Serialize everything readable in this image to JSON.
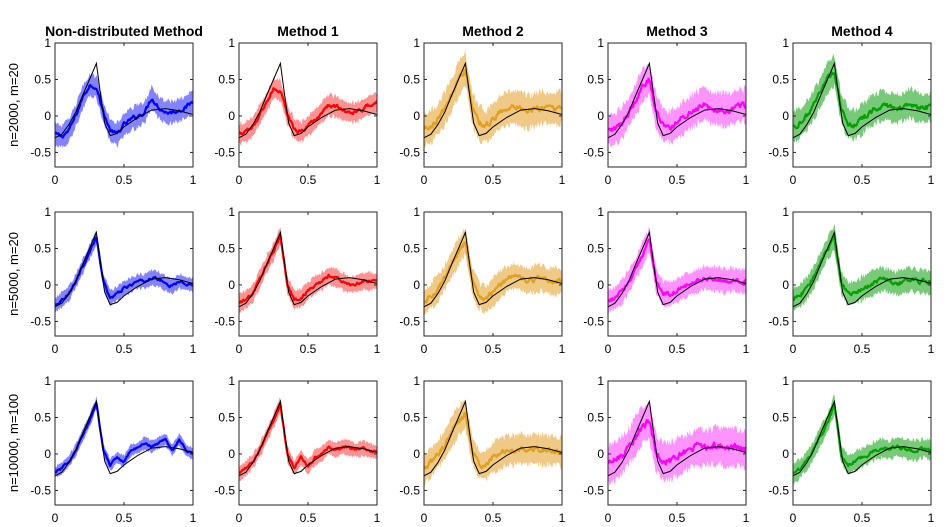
{
  "chart_data": {
    "type": "line",
    "layout": "grid of 3 rows by 5 columns",
    "column_titles": [
      "Non-distributed Method",
      "Method 1",
      "Method 2",
      "Method 3",
      "Method 4"
    ],
    "row_labels": [
      "n=2000, m=20",
      "n=5000, m=20",
      "n=10000, m=100"
    ],
    "colors": [
      "#0000ff",
      "#ff0000",
      "#e0a020",
      "#ff00ff",
      "#00a000"
    ],
    "band_colors": [
      "#6f6fff",
      "#ff8080",
      "#ecc070",
      "#ff80ff",
      "#60c060"
    ],
    "true_function_color": "#000000",
    "xlim": [
      0,
      1
    ],
    "ylim": [
      -0.7,
      1
    ],
    "xticks": [
      0,
      0.5,
      1
    ],
    "xtick_labels": [
      "0",
      "0.5",
      "1"
    ],
    "yticks": [
      -0.5,
      0,
      0.5,
      1
    ],
    "ytick_labels": [
      "-0.5",
      "0",
      "0.5",
      "1"
    ],
    "true_function": {
      "x": [
        0,
        0.05,
        0.1,
        0.15,
        0.2,
        0.25,
        0.3,
        0.33,
        0.36,
        0.4,
        0.45,
        0.5,
        0.6,
        0.7,
        0.8,
        0.9,
        1.0
      ],
      "y": [
        -0.3,
        -0.25,
        -0.12,
        0.05,
        0.28,
        0.5,
        0.72,
        0.3,
        -0.1,
        -0.27,
        -0.24,
        -0.15,
        -0.02,
        0.08,
        0.1,
        0.07,
        0.02
      ]
    },
    "grid": [
      [
        {
          "x": [
            0,
            0.05,
            0.1,
            0.15,
            0.2,
            0.25,
            0.3,
            0.35,
            0.4,
            0.45,
            0.5,
            0.55,
            0.6,
            0.65,
            0.7,
            0.75,
            0.8,
            0.85,
            0.9,
            0.95,
            1.0
          ],
          "y": [
            -0.25,
            -0.28,
            -0.2,
            0.0,
            0.25,
            0.42,
            0.4,
            0.05,
            -0.2,
            -0.25,
            -0.12,
            -0.05,
            0.0,
            0.05,
            0.25,
            0.12,
            0.05,
            0.05,
            0.08,
            0.12,
            0.2
          ],
          "band_halfwidth": 0.15
        },
        {
          "x": [
            0,
            0.05,
            0.1,
            0.15,
            0.2,
            0.25,
            0.3,
            0.35,
            0.4,
            0.45,
            0.5,
            0.55,
            0.6,
            0.65,
            0.7,
            0.75,
            0.8,
            0.85,
            0.9,
            0.95,
            1.0
          ],
          "y": [
            -0.25,
            -0.22,
            -0.15,
            0.02,
            0.18,
            0.38,
            0.35,
            0.02,
            -0.18,
            -0.22,
            -0.14,
            -0.05,
            0.05,
            0.15,
            0.13,
            0.08,
            0.05,
            0.05,
            0.1,
            0.15,
            0.18
          ],
          "band_halfwidth": 0.14
        },
        {
          "x": [
            0,
            0.05,
            0.1,
            0.15,
            0.2,
            0.25,
            0.3,
            0.35,
            0.4,
            0.45,
            0.5,
            0.55,
            0.6,
            0.65,
            0.7,
            0.75,
            0.8,
            0.85,
            0.9,
            0.95,
            1.0
          ],
          "y": [
            -0.2,
            -0.15,
            -0.05,
            0.1,
            0.28,
            0.5,
            0.65,
            0.1,
            -0.1,
            -0.15,
            -0.05,
            0.05,
            0.1,
            0.12,
            0.1,
            0.05,
            0.08,
            0.12,
            0.1,
            0.1,
            0.12
          ],
          "band_halfwidth": 0.22
        },
        {
          "x": [
            0,
            0.05,
            0.1,
            0.15,
            0.2,
            0.25,
            0.3,
            0.35,
            0.4,
            0.45,
            0.5,
            0.55,
            0.6,
            0.65,
            0.7,
            0.75,
            0.8,
            0.85,
            0.9,
            0.95,
            1.0
          ],
          "y": [
            -0.2,
            -0.18,
            -0.1,
            0.05,
            0.22,
            0.42,
            0.5,
            0.05,
            -0.12,
            -0.15,
            -0.1,
            -0.02,
            0.05,
            0.12,
            0.18,
            0.1,
            0.1,
            0.08,
            0.1,
            0.15,
            0.15
          ],
          "band_halfwidth": 0.22
        },
        {
          "x": [
            0,
            0.05,
            0.1,
            0.15,
            0.2,
            0.25,
            0.3,
            0.35,
            0.4,
            0.45,
            0.5,
            0.55,
            0.6,
            0.65,
            0.7,
            0.75,
            0.8,
            0.85,
            0.9,
            0.95,
            1.0
          ],
          "y": [
            -0.15,
            -0.1,
            0.0,
            0.15,
            0.32,
            0.52,
            0.62,
            0.1,
            -0.1,
            -0.12,
            -0.05,
            0.05,
            0.1,
            0.15,
            0.12,
            0.1,
            0.12,
            0.18,
            0.12,
            0.1,
            0.12
          ],
          "band_halfwidth": 0.2
        }
      ],
      [
        {
          "x": [
            0,
            0.05,
            0.1,
            0.15,
            0.2,
            0.25,
            0.3,
            0.35,
            0.4,
            0.45,
            0.5,
            0.55,
            0.6,
            0.65,
            0.7,
            0.75,
            0.8,
            0.85,
            0.9,
            0.95,
            1.0
          ],
          "y": [
            -0.28,
            -0.2,
            -0.12,
            0.05,
            0.25,
            0.45,
            0.65,
            0.05,
            -0.18,
            -0.12,
            -0.05,
            0.0,
            0.05,
            0.05,
            0.1,
            0.08,
            0.02,
            -0.02,
            0.05,
            0.02,
            0.0
          ],
          "band_halfwidth": 0.1
        },
        {
          "x": [
            0,
            0.05,
            0.1,
            0.15,
            0.2,
            0.25,
            0.3,
            0.35,
            0.4,
            0.45,
            0.5,
            0.55,
            0.6,
            0.65,
            0.7,
            0.75,
            0.8,
            0.85,
            0.9,
            0.95,
            1.0
          ],
          "y": [
            -0.25,
            -0.2,
            -0.12,
            0.08,
            0.28,
            0.45,
            0.68,
            0.0,
            -0.2,
            -0.18,
            -0.08,
            0.0,
            0.05,
            0.12,
            0.1,
            0.05,
            0.0,
            0.02,
            0.05,
            0.05,
            0.05
          ],
          "band_halfwidth": 0.12
        },
        {
          "x": [
            0,
            0.05,
            0.1,
            0.15,
            0.2,
            0.25,
            0.3,
            0.35,
            0.4,
            0.45,
            0.5,
            0.55,
            0.6,
            0.65,
            0.7,
            0.75,
            0.8,
            0.85,
            0.9,
            0.95,
            1.0
          ],
          "y": [
            -0.25,
            -0.15,
            -0.05,
            0.1,
            0.28,
            0.45,
            0.6,
            0.05,
            -0.15,
            -0.2,
            -0.1,
            0.0,
            0.08,
            0.12,
            0.1,
            0.05,
            0.08,
            0.1,
            0.05,
            0.05,
            0.05
          ],
          "band_halfwidth": 0.18
        },
        {
          "x": [
            0,
            0.05,
            0.1,
            0.15,
            0.2,
            0.25,
            0.3,
            0.35,
            0.4,
            0.45,
            0.5,
            0.55,
            0.6,
            0.65,
            0.7,
            0.75,
            0.8,
            0.85,
            0.9,
            0.95,
            1.0
          ],
          "y": [
            -0.22,
            -0.18,
            -0.1,
            0.05,
            0.22,
            0.42,
            0.62,
            0.05,
            -0.12,
            -0.12,
            -0.08,
            -0.02,
            0.02,
            0.05,
            0.1,
            0.08,
            0.08,
            0.05,
            0.08,
            0.05,
            0.05
          ],
          "band_halfwidth": 0.16
        },
        {
          "x": [
            0,
            0.05,
            0.1,
            0.15,
            0.2,
            0.25,
            0.3,
            0.35,
            0.4,
            0.45,
            0.5,
            0.55,
            0.6,
            0.65,
            0.7,
            0.75,
            0.8,
            0.85,
            0.9,
            0.95,
            1.0
          ],
          "y": [
            -0.2,
            -0.15,
            -0.05,
            0.1,
            0.3,
            0.5,
            0.65,
            0.02,
            -0.12,
            -0.1,
            -0.05,
            0.0,
            0.05,
            0.08,
            0.05,
            0.02,
            0.05,
            0.08,
            0.05,
            0.05,
            0.02
          ],
          "band_halfwidth": 0.16
        }
      ],
      [
        {
          "x": [
            0,
            0.05,
            0.1,
            0.15,
            0.2,
            0.25,
            0.3,
            0.35,
            0.4,
            0.45,
            0.5,
            0.55,
            0.6,
            0.65,
            0.7,
            0.75,
            0.8,
            0.85,
            0.9,
            0.95,
            1.0
          ],
          "y": [
            -0.25,
            -0.2,
            -0.1,
            0.05,
            0.25,
            0.45,
            0.7,
            0.05,
            -0.15,
            -0.05,
            -0.1,
            0.05,
            0.08,
            0.15,
            0.1,
            0.15,
            0.2,
            0.05,
            0.2,
            0.05,
            0.0
          ],
          "band_halfwidth": 0.08
        },
        {
          "x": [
            0,
            0.05,
            0.1,
            0.15,
            0.2,
            0.25,
            0.3,
            0.35,
            0.4,
            0.45,
            0.5,
            0.55,
            0.6,
            0.65,
            0.7,
            0.75,
            0.8,
            0.85,
            0.9,
            0.95,
            1.0
          ],
          "y": [
            -0.28,
            -0.2,
            -0.1,
            0.05,
            0.25,
            0.45,
            0.68,
            0.0,
            -0.2,
            -0.05,
            -0.18,
            -0.05,
            0.0,
            0.1,
            0.05,
            0.1,
            0.08,
            0.05,
            0.08,
            0.05,
            0.02
          ],
          "band_halfwidth": 0.1
        },
        {
          "x": [
            0,
            0.05,
            0.1,
            0.15,
            0.2,
            0.25,
            0.3,
            0.35,
            0.4,
            0.45,
            0.5,
            0.55,
            0.6,
            0.65,
            0.7,
            0.75,
            0.8,
            0.85,
            0.9,
            0.95,
            1.0
          ],
          "y": [
            -0.22,
            -0.12,
            0.0,
            0.12,
            0.3,
            0.45,
            0.55,
            0.05,
            -0.15,
            -0.15,
            -0.05,
            0.0,
            0.05,
            0.05,
            0.08,
            0.05,
            0.08,
            0.05,
            0.05,
            0.05,
            0.02
          ],
          "band_halfwidth": 0.2
        },
        {
          "x": [
            0,
            0.05,
            0.1,
            0.15,
            0.2,
            0.25,
            0.3,
            0.35,
            0.4,
            0.45,
            0.5,
            0.55,
            0.6,
            0.65,
            0.7,
            0.75,
            0.8,
            0.85,
            0.9,
            0.95,
            1.0
          ],
          "y": [
            -0.15,
            -0.1,
            -0.02,
            0.1,
            0.25,
            0.4,
            0.45,
            0.0,
            -0.1,
            -0.1,
            -0.05,
            0.0,
            0.05,
            0.1,
            0.08,
            0.1,
            0.12,
            0.08,
            0.1,
            0.08,
            0.05
          ],
          "band_halfwidth": 0.25
        },
        {
          "x": [
            0,
            0.05,
            0.1,
            0.15,
            0.2,
            0.25,
            0.3,
            0.35,
            0.4,
            0.45,
            0.5,
            0.55,
            0.6,
            0.65,
            0.7,
            0.75,
            0.8,
            0.85,
            0.9,
            0.95,
            1.0
          ],
          "y": [
            -0.28,
            -0.2,
            -0.1,
            0.05,
            0.25,
            0.42,
            0.68,
            0.0,
            -0.15,
            -0.1,
            -0.05,
            0.0,
            0.05,
            0.08,
            0.05,
            0.1,
            0.08,
            0.05,
            0.05,
            0.08,
            0.05
          ],
          "band_halfwidth": 0.13
        }
      ]
    ]
  }
}
